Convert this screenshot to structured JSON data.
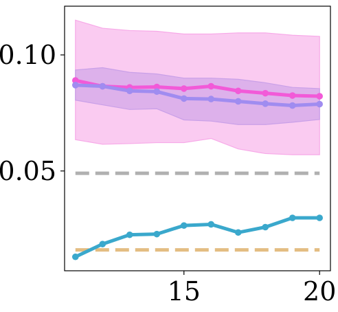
{
  "chart_data": {
    "type": "line",
    "title": "",
    "xlabel": "",
    "ylabel": "",
    "xlim": [
      10.6,
      20.4
    ],
    "ylim": [
      0.007,
      0.121
    ],
    "grid": false,
    "legend": "none",
    "x_ticks": [
      {
        "value": 15,
        "label": "15"
      },
      {
        "value": 20,
        "label": "20"
      }
    ],
    "y_ticks": [
      {
        "value": 0.05,
        "label": "0.05"
      },
      {
        "value": 0.1,
        "label": "0.10"
      }
    ],
    "series": [
      {
        "color": "#f25ad8",
        "band_color": "#f7a9e8",
        "x": [
          11,
          12,
          13,
          14,
          15,
          16,
          17,
          18,
          19,
          20
        ],
        "y": [
          0.089,
          0.0865,
          0.086,
          0.0862,
          0.0855,
          0.0865,
          0.0845,
          0.0835,
          0.0825,
          0.0822
        ],
        "lower": [
          0.0635,
          0.0615,
          0.0618,
          0.0622,
          0.0622,
          0.064,
          0.0595,
          0.0575,
          0.057,
          0.057
        ],
        "upper": [
          0.115,
          0.1115,
          0.1105,
          0.1102,
          0.109,
          0.109,
          0.1095,
          0.1095,
          0.1085,
          0.108
        ]
      },
      {
        "color": "#a08cf0",
        "band_color": "#c9a0e8",
        "x": [
          11,
          12,
          13,
          14,
          15,
          16,
          17,
          18,
          19,
          20
        ],
        "y": [
          0.087,
          0.0865,
          0.0845,
          0.0842,
          0.0812,
          0.081,
          0.08,
          0.079,
          0.0782,
          0.0788
        ],
        "lower": [
          0.0805,
          0.0785,
          0.0765,
          0.0768,
          0.072,
          0.0715,
          0.07,
          0.07,
          0.071,
          0.0722
        ],
        "upper": [
          0.0935,
          0.0945,
          0.0925,
          0.0918,
          0.09,
          0.09,
          0.0895,
          0.088,
          0.086,
          0.0855
        ]
      },
      {
        "color": "#3aa8cc",
        "x": [
          11,
          12,
          13,
          14,
          15,
          16,
          17,
          18,
          19,
          20
        ],
        "y": [
          0.013,
          0.0185,
          0.0225,
          0.0228,
          0.0265,
          0.027,
          0.0235,
          0.0258,
          0.0298,
          0.0298
        ]
      }
    ],
    "reference_lines": [
      {
        "color": "#b0b0b0",
        "y": 0.049,
        "x_from": 11,
        "x_to": 20,
        "style": "dashed"
      },
      {
        "color": "#e3bd82",
        "y": 0.016,
        "x_from": 11,
        "x_to": 20,
        "style": "dashed"
      }
    ]
  }
}
